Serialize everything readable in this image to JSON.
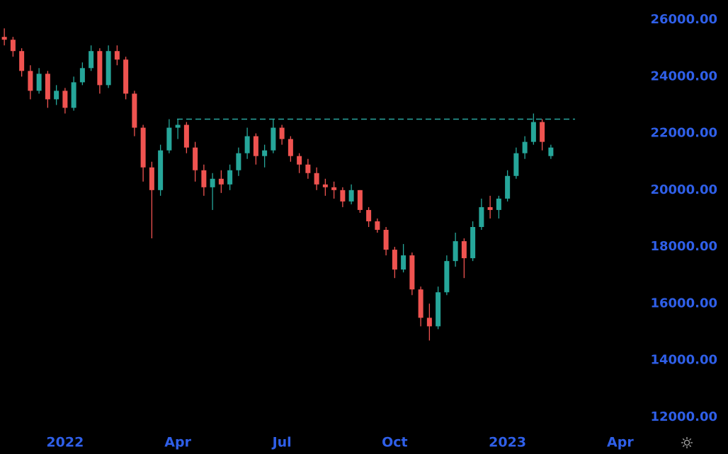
{
  "chart_data": {
    "type": "candlestick",
    "categories": [
      null,
      null,
      null,
      null,
      null,
      null,
      null,
      "2022",
      null,
      null,
      null,
      null,
      null,
      null,
      null,
      null,
      null,
      null,
      null,
      null,
      "Apr",
      null,
      null,
      null,
      null,
      null,
      null,
      null,
      null,
      null,
      null,
      null,
      "Jul",
      null,
      null,
      null,
      null,
      null,
      null,
      null,
      null,
      null,
      null,
      null,
      null,
      "Oct",
      null,
      null,
      null,
      null,
      null,
      null,
      null,
      null,
      null,
      null,
      null,
      null,
      "2023",
      null,
      null,
      null,
      null,
      null,
      null,
      null,
      null,
      null,
      null,
      null,
      null,
      "Apr",
      null,
      null,
      null,
      null,
      null,
      null,
      null
    ],
    "open": [
      25400,
      25300,
      24900,
      24200,
      23500,
      24100,
      23200,
      23500,
      22900,
      23800,
      24300,
      24900,
      23700,
      24900,
      24600,
      23400,
      22200,
      20800,
      20000,
      21400,
      22200,
      22300,
      21500,
      20700,
      20100,
      20400,
      20200,
      20700,
      21300,
      21900,
      21200,
      21400,
      22200,
      21800,
      21200,
      20900,
      20600,
      20200,
      20100,
      20000,
      19600,
      20000,
      19300,
      18900,
      18600,
      17900,
      17200,
      17700,
      16500,
      15500,
      15200,
      16400,
      17500,
      18200,
      17600,
      18700,
      19400,
      19300,
      19700,
      20500,
      21300,
      21700,
      22400,
      21200,
      null,
      null,
      null,
      null,
      null,
      null,
      null,
      null,
      null,
      null,
      null,
      null,
      null,
      null,
      null
    ],
    "high": [
      25700,
      25400,
      25000,
      24400,
      24300,
      24200,
      23700,
      23600,
      24000,
      24500,
      25100,
      25000,
      25100,
      25100,
      24700,
      23500,
      22300,
      21000,
      21600,
      22500,
      22500,
      22400,
      21700,
      20900,
      20600,
      20700,
      20900,
      21500,
      22200,
      22000,
      21600,
      22500,
      22300,
      21900,
      21300,
      21100,
      20800,
      20400,
      20300,
      20100,
      20200,
      20000,
      19400,
      19000,
      18700,
      18000,
      18100,
      17800,
      16600,
      16000,
      16600,
      17700,
      18500,
      18300,
      18900,
      19700,
      19800,
      19800,
      20700,
      21500,
      21900,
      22700,
      22500,
      21600,
      null,
      null,
      null,
      null,
      null,
      null,
      null,
      null,
      null,
      null,
      null,
      null,
      null,
      null,
      null
    ],
    "low": [
      25100,
      24700,
      24000,
      23200,
      23400,
      22900,
      23000,
      22700,
      22800,
      23700,
      24200,
      23400,
      23600,
      24400,
      23200,
      21900,
      20300,
      18300,
      19800,
      21300,
      21800,
      21300,
      20300,
      19800,
      19300,
      19900,
      20000,
      20500,
      21100,
      20900,
      20800,
      21300,
      21600,
      21000,
      20600,
      20400,
      20000,
      19800,
      19700,
      19400,
      19500,
      19200,
      18700,
      18500,
      17700,
      16900,
      17100,
      16300,
      15200,
      14700,
      15100,
      16300,
      17300,
      16900,
      17500,
      18600,
      19000,
      19000,
      19600,
      20400,
      21100,
      21600,
      21400,
      21100,
      null,
      null,
      null,
      null,
      null,
      null,
      null,
      null,
      null,
      null,
      null,
      null,
      null,
      null,
      null
    ],
    "close": [
      25300,
      24900,
      24200,
      23500,
      24100,
      23200,
      23500,
      22900,
      23800,
      24300,
      24900,
      23700,
      24900,
      24600,
      23400,
      22200,
      20800,
      20000,
      21400,
      22200,
      22300,
      21500,
      20700,
      20100,
      20400,
      20200,
      20700,
      21300,
      21900,
      21200,
      21400,
      22200,
      21800,
      21200,
      20900,
      20600,
      20200,
      20100,
      20000,
      19600,
      20000,
      19300,
      18900,
      18600,
      17900,
      17200,
      17700,
      16500,
      15500,
      15200,
      16400,
      17500,
      18200,
      17600,
      18700,
      19400,
      19300,
      19700,
      20500,
      21300,
      21700,
      22400,
      21700,
      21500,
      null,
      null,
      null,
      null,
      null,
      null,
      null,
      null,
      null,
      null,
      null,
      null,
      null,
      null,
      null
    ],
    "up_color": "#26a69a",
    "down_color": "#ef5350",
    "hline": {
      "value": 22500,
      "color": "#2ba5a0"
    },
    "ylim": [
      10700,
      26700
    ],
    "yticks": [
      {
        "value": 12000,
        "label": "12000.00"
      },
      {
        "value": 14000,
        "label": "14000.00"
      },
      {
        "value": 16000,
        "label": "16000.00"
      },
      {
        "value": 18000,
        "label": "18000.00"
      },
      {
        "value": 20000,
        "label": "20000.00"
      },
      {
        "value": 22000,
        "label": "22000.00"
      },
      {
        "value": 24000,
        "label": "24000.00"
      },
      {
        "value": 26000,
        "label": "26000.00"
      }
    ],
    "axis_color": "#2f5fe8",
    "grid": false
  }
}
